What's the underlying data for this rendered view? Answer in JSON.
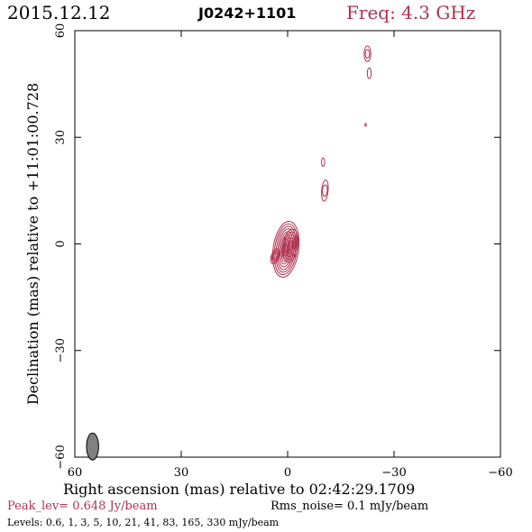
{
  "header": {
    "date": "2015.12.12",
    "source": "J0242+1101",
    "freq": "Freq: 4.3 GHz"
  },
  "footer": {
    "peak": "Peak_lev=  0.648 Jy/beam",
    "rms": "Rms_noise=  0.1 mJy/beam",
    "levels": "Levels: 0.6,    1,    3,    5,   10,   21,   41,   83, 165, 330 mJy/beam"
  },
  "colors": {
    "contour": "#b0304f",
    "accent": "#b0304f",
    "beam": "#808080"
  },
  "chart_data": {
    "type": "contour",
    "xlabel": "Right ascension (mas) relative to 02:42:29.1709",
    "ylabel": "Declination (mas) relative to +11:01:00.728",
    "xlim": [
      60,
      -60
    ],
    "ylim": [
      -60,
      60
    ],
    "xticks": [
      60,
      30,
      0,
      -30,
      -60
    ],
    "yticks": [
      -60,
      -30,
      0,
      30,
      60
    ],
    "xtick_labels": [
      "60",
      "30",
      "0",
      "−30",
      "−60"
    ],
    "ytick_labels": [
      "−60",
      "−30",
      "0",
      "30",
      "60"
    ],
    "beam": {
      "x": 55,
      "y": -57,
      "major": 3.8,
      "minor": 1.7,
      "pa": 0
    },
    "components": [
      {
        "x": 0.5,
        "y": -1.5,
        "rings": [
          [
            1.2,
            0.3
          ],
          [
            2.0,
            0.55
          ],
          [
            2.8,
            0.8
          ],
          [
            3.5,
            1.1
          ],
          [
            4.2,
            1.45
          ],
          [
            5.0,
            1.85
          ],
          [
            5.8,
            2.25
          ],
          [
            6.5,
            2.7
          ],
          [
            7.2,
            3.15
          ],
          [
            7.9,
            3.6
          ]
        ],
        "angle": 8
      },
      {
        "x": -0.8,
        "y": -0.5,
        "rings": [
          [
            1.4,
            0.5
          ],
          [
            2.2,
            0.85
          ],
          [
            3.1,
            1.3
          ],
          [
            3.9,
            1.7
          ],
          [
            4.7,
            2.1
          ]
        ],
        "angle": 8
      },
      {
        "x": 3.5,
        "y": -3.5,
        "rings": [
          [
            1.0,
            0.5
          ],
          [
            1.6,
            0.8
          ],
          [
            2.2,
            1.1
          ]
        ],
        "angle": 20
      },
      {
        "x": -10.5,
        "y": 15.0,
        "rings": [
          [
            1.6,
            0.7
          ],
          [
            3.0,
            0.9
          ]
        ],
        "angle": 5
      },
      {
        "x": -10.0,
        "y": 23.0,
        "rings": [
          [
            1.2,
            0.45
          ]
        ],
        "angle": 0
      },
      {
        "x": -22.0,
        "y": 33.5,
        "rings": [
          [
            0.4,
            0.2
          ]
        ],
        "angle": 0
      },
      {
        "x": -22.5,
        "y": 53.5,
        "rings": [
          [
            1.2,
            0.6
          ],
          [
            2.2,
            0.95
          ]
        ],
        "angle": 0
      },
      {
        "x": -23.0,
        "y": 48.0,
        "rings": [
          [
            1.5,
            0.55
          ]
        ],
        "angle": 0
      }
    ]
  }
}
